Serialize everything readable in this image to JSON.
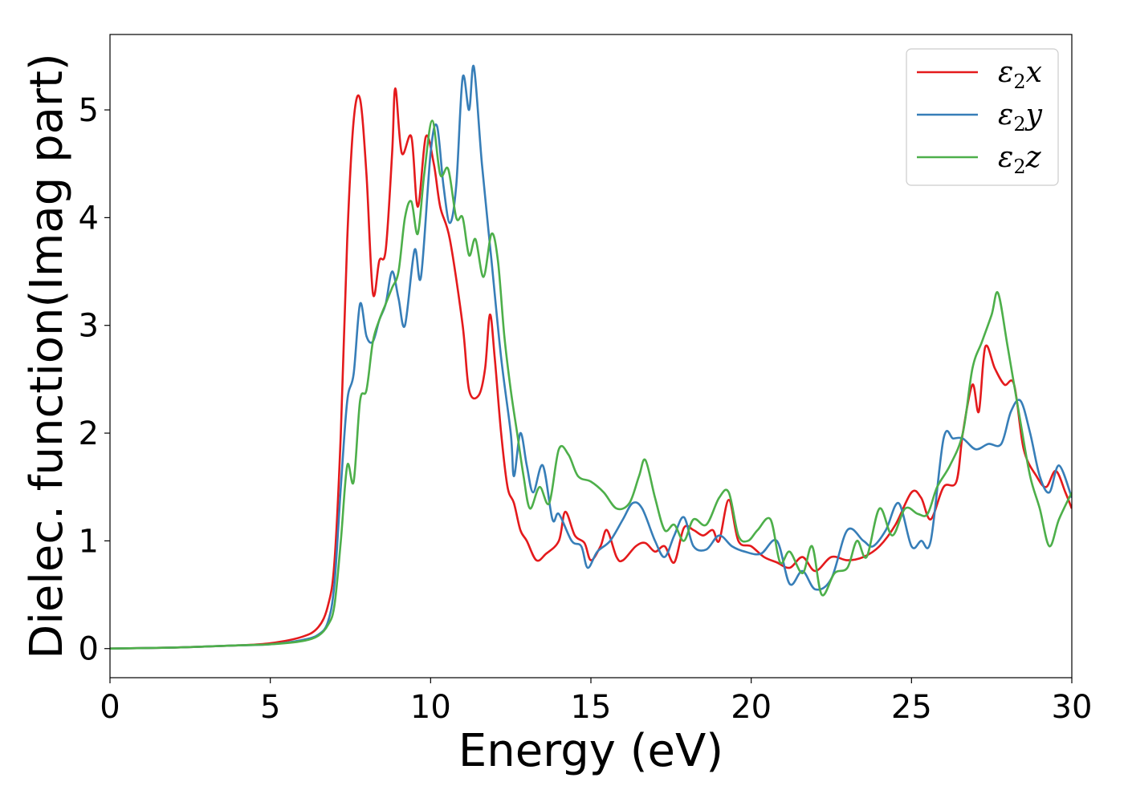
{
  "chart_data": {
    "type": "line",
    "title": "",
    "xlabel": "Energy (eV)",
    "ylabel": "Dielec. function(Imag part)",
    "xlim": [
      0,
      30
    ],
    "ylim": [
      -0.27,
      5.7
    ],
    "xticks": [
      0,
      5,
      10,
      15,
      20,
      25,
      30
    ],
    "xtick_labels": [
      "0",
      "5",
      "10",
      "15",
      "20",
      "25",
      "30"
    ],
    "yticks": [
      0,
      1,
      2,
      3,
      4,
      5
    ],
    "ytick_labels": [
      "0",
      "1",
      "2",
      "3",
      "4",
      "5"
    ],
    "grid": false,
    "legend_position": "top-right",
    "series": [
      {
        "name": "ε₂x",
        "legend_base": "ε",
        "legend_sub": "2",
        "legend_suffix": "x",
        "color": "#e41a1c",
        "points": [
          [
            0,
            0
          ],
          [
            2,
            0.01
          ],
          [
            4,
            0.03
          ],
          [
            5,
            0.05
          ],
          [
            6,
            0.11
          ],
          [
            6.5,
            0.2
          ],
          [
            6.8,
            0.4
          ],
          [
            7.0,
            0.8
          ],
          [
            7.2,
            2.0
          ],
          [
            7.4,
            3.8
          ],
          [
            7.6,
            4.9
          ],
          [
            7.8,
            5.1
          ],
          [
            8.0,
            4.4
          ],
          [
            8.2,
            3.3
          ],
          [
            8.4,
            3.6
          ],
          [
            8.6,
            3.7
          ],
          [
            8.8,
            4.6
          ],
          [
            8.9,
            5.2
          ],
          [
            9.1,
            4.6
          ],
          [
            9.4,
            4.75
          ],
          [
            9.6,
            4.1
          ],
          [
            9.85,
            4.75
          ],
          [
            10.1,
            4.5
          ],
          [
            10.3,
            4.1
          ],
          [
            10.6,
            3.8
          ],
          [
            11.0,
            3.0
          ],
          [
            11.2,
            2.4
          ],
          [
            11.5,
            2.35
          ],
          [
            11.7,
            2.6
          ],
          [
            11.85,
            3.1
          ],
          [
            12.0,
            2.7
          ],
          [
            12.2,
            2.0
          ],
          [
            12.4,
            1.5
          ],
          [
            12.6,
            1.35
          ],
          [
            12.8,
            1.1
          ],
          [
            13.0,
            1.0
          ],
          [
            13.3,
            0.82
          ],
          [
            13.6,
            0.88
          ],
          [
            14.0,
            1.0
          ],
          [
            14.2,
            1.27
          ],
          [
            14.5,
            1.05
          ],
          [
            14.8,
            0.98
          ],
          [
            15.0,
            0.82
          ],
          [
            15.3,
            0.95
          ],
          [
            15.5,
            1.1
          ],
          [
            15.8,
            0.85
          ],
          [
            16.0,
            0.82
          ],
          [
            16.4,
            0.95
          ],
          [
            16.7,
            0.98
          ],
          [
            17.0,
            0.9
          ],
          [
            17.3,
            0.95
          ],
          [
            17.6,
            0.8
          ],
          [
            17.9,
            1.12
          ],
          [
            18.2,
            1.1
          ],
          [
            18.5,
            1.05
          ],
          [
            18.8,
            1.1
          ],
          [
            19.0,
            1.0
          ],
          [
            19.3,
            1.38
          ],
          [
            19.6,
            1.0
          ],
          [
            20.0,
            0.95
          ],
          [
            20.4,
            0.85
          ],
          [
            20.8,
            0.8
          ],
          [
            21.2,
            0.75
          ],
          [
            21.6,
            0.85
          ],
          [
            22.0,
            0.72
          ],
          [
            22.5,
            0.85
          ],
          [
            23.0,
            0.82
          ],
          [
            23.5,
            0.85
          ],
          [
            24.0,
            0.95
          ],
          [
            24.5,
            1.15
          ],
          [
            25.0,
            1.45
          ],
          [
            25.3,
            1.4
          ],
          [
            25.6,
            1.2
          ],
          [
            26.0,
            1.5
          ],
          [
            26.4,
            1.55
          ],
          [
            26.6,
            2.0
          ],
          [
            26.9,
            2.45
          ],
          [
            27.1,
            2.2
          ],
          [
            27.3,
            2.8
          ],
          [
            27.6,
            2.6
          ],
          [
            27.9,
            2.45
          ],
          [
            28.2,
            2.45
          ],
          [
            28.5,
            1.85
          ],
          [
            28.9,
            1.6
          ],
          [
            29.2,
            1.5
          ],
          [
            29.5,
            1.65
          ],
          [
            29.8,
            1.45
          ],
          [
            30,
            1.3
          ]
        ]
      },
      {
        "name": "ε₂y",
        "legend_base": "ε",
        "legend_sub": "2",
        "legend_suffix": "y",
        "color": "#377eb8",
        "points": [
          [
            0,
            0
          ],
          [
            2,
            0.01
          ],
          [
            4,
            0.03
          ],
          [
            5,
            0.04
          ],
          [
            6,
            0.08
          ],
          [
            6.5,
            0.13
          ],
          [
            6.8,
            0.25
          ],
          [
            7.0,
            0.6
          ],
          [
            7.2,
            1.5
          ],
          [
            7.4,
            2.3
          ],
          [
            7.6,
            2.55
          ],
          [
            7.8,
            3.2
          ],
          [
            8.0,
            2.9
          ],
          [
            8.2,
            2.85
          ],
          [
            8.4,
            3.05
          ],
          [
            8.6,
            3.2
          ],
          [
            8.8,
            3.5
          ],
          [
            9.0,
            3.25
          ],
          [
            9.2,
            3.0
          ],
          [
            9.5,
            3.7
          ],
          [
            9.7,
            3.45
          ],
          [
            10.0,
            4.6
          ],
          [
            10.2,
            4.85
          ],
          [
            10.4,
            4.3
          ],
          [
            10.6,
            3.95
          ],
          [
            10.8,
            4.3
          ],
          [
            11.0,
            5.3
          ],
          [
            11.2,
            5.0
          ],
          [
            11.35,
            5.4
          ],
          [
            11.6,
            4.5
          ],
          [
            11.9,
            3.6
          ],
          [
            12.2,
            2.7
          ],
          [
            12.5,
            2.0
          ],
          [
            12.6,
            1.6
          ],
          [
            12.8,
            2.0
          ],
          [
            13.0,
            1.7
          ],
          [
            13.2,
            1.45
          ],
          [
            13.5,
            1.7
          ],
          [
            13.8,
            1.2
          ],
          [
            14.0,
            1.25
          ],
          [
            14.4,
            1.0
          ],
          [
            14.7,
            0.95
          ],
          [
            14.9,
            0.75
          ],
          [
            15.2,
            0.9
          ],
          [
            15.6,
            1.0
          ],
          [
            16.0,
            1.2
          ],
          [
            16.3,
            1.35
          ],
          [
            16.6,
            1.3
          ],
          [
            17.0,
            1.0
          ],
          [
            17.3,
            0.85
          ],
          [
            17.6,
            1.05
          ],
          [
            17.9,
            1.22
          ],
          [
            18.2,
            0.95
          ],
          [
            18.6,
            0.92
          ],
          [
            19.0,
            1.05
          ],
          [
            19.4,
            0.95
          ],
          [
            19.8,
            0.9
          ],
          [
            20.3,
            0.88
          ],
          [
            20.8,
            1.0
          ],
          [
            21.2,
            0.6
          ],
          [
            21.6,
            0.72
          ],
          [
            22.0,
            0.55
          ],
          [
            22.5,
            0.65
          ],
          [
            23.0,
            1.1
          ],
          [
            23.5,
            1.0
          ],
          [
            23.8,
            0.95
          ],
          [
            24.2,
            1.1
          ],
          [
            24.6,
            1.35
          ],
          [
            25.0,
            0.95
          ],
          [
            25.3,
            1.0
          ],
          [
            25.6,
            1.0
          ],
          [
            26.0,
            1.95
          ],
          [
            26.3,
            1.95
          ],
          [
            26.6,
            1.95
          ],
          [
            27.0,
            1.85
          ],
          [
            27.4,
            1.9
          ],
          [
            27.8,
            1.9
          ],
          [
            28.1,
            2.2
          ],
          [
            28.4,
            2.3
          ],
          [
            28.7,
            2.0
          ],
          [
            29.0,
            1.6
          ],
          [
            29.3,
            1.45
          ],
          [
            29.6,
            1.7
          ],
          [
            30,
            1.4
          ]
        ]
      },
      {
        "name": "ε₂z",
        "legend_base": "ε",
        "legend_sub": "2",
        "legend_suffix": "z",
        "color": "#4daf4a",
        "points": [
          [
            0,
            0
          ],
          [
            2,
            0.01
          ],
          [
            4,
            0.03
          ],
          [
            5,
            0.04
          ],
          [
            6,
            0.07
          ],
          [
            6.5,
            0.12
          ],
          [
            6.8,
            0.22
          ],
          [
            7.0,
            0.4
          ],
          [
            7.2,
            1.0
          ],
          [
            7.4,
            1.7
          ],
          [
            7.6,
            1.55
          ],
          [
            7.8,
            2.3
          ],
          [
            8.0,
            2.4
          ],
          [
            8.2,
            2.85
          ],
          [
            8.4,
            3.05
          ],
          [
            8.6,
            3.2
          ],
          [
            8.8,
            3.35
          ],
          [
            9.0,
            3.5
          ],
          [
            9.2,
            4.0
          ],
          [
            9.4,
            4.15
          ],
          [
            9.6,
            3.85
          ],
          [
            9.8,
            4.4
          ],
          [
            10.05,
            4.9
          ],
          [
            10.3,
            4.4
          ],
          [
            10.55,
            4.45
          ],
          [
            10.8,
            4.0
          ],
          [
            11.0,
            4.0
          ],
          [
            11.2,
            3.65
          ],
          [
            11.4,
            3.8
          ],
          [
            11.65,
            3.45
          ],
          [
            11.9,
            3.85
          ],
          [
            12.1,
            3.6
          ],
          [
            12.3,
            2.9
          ],
          [
            12.5,
            2.4
          ],
          [
            12.7,
            2.0
          ],
          [
            12.9,
            1.6
          ],
          [
            13.1,
            1.3
          ],
          [
            13.4,
            1.5
          ],
          [
            13.7,
            1.35
          ],
          [
            14.0,
            1.85
          ],
          [
            14.3,
            1.8
          ],
          [
            14.6,
            1.6
          ],
          [
            15.0,
            1.55
          ],
          [
            15.4,
            1.45
          ],
          [
            15.8,
            1.3
          ],
          [
            16.2,
            1.35
          ],
          [
            16.5,
            1.6
          ],
          [
            16.7,
            1.75
          ],
          [
            17.0,
            1.4
          ],
          [
            17.3,
            1.1
          ],
          [
            17.6,
            1.15
          ],
          [
            17.9,
            1.0
          ],
          [
            18.2,
            1.2
          ],
          [
            18.6,
            1.15
          ],
          [
            19.0,
            1.4
          ],
          [
            19.3,
            1.45
          ],
          [
            19.6,
            1.05
          ],
          [
            19.9,
            1.0
          ],
          [
            20.2,
            1.1
          ],
          [
            20.6,
            1.2
          ],
          [
            20.9,
            0.8
          ],
          [
            21.2,
            0.9
          ],
          [
            21.6,
            0.7
          ],
          [
            21.9,
            0.95
          ],
          [
            22.2,
            0.5
          ],
          [
            22.6,
            0.7
          ],
          [
            23.0,
            0.75
          ],
          [
            23.3,
            1.0
          ],
          [
            23.6,
            0.85
          ],
          [
            24.0,
            1.3
          ],
          [
            24.4,
            1.05
          ],
          [
            24.8,
            1.3
          ],
          [
            25.2,
            1.25
          ],
          [
            25.5,
            1.25
          ],
          [
            25.8,
            1.5
          ],
          [
            26.2,
            1.7
          ],
          [
            26.6,
            2.0
          ],
          [
            26.9,
            2.6
          ],
          [
            27.2,
            2.85
          ],
          [
            27.5,
            3.1
          ],
          [
            27.7,
            3.3
          ],
          [
            28.0,
            2.8
          ],
          [
            28.4,
            2.1
          ],
          [
            28.7,
            1.6
          ],
          [
            29.0,
            1.3
          ],
          [
            29.3,
            0.95
          ],
          [
            29.6,
            1.2
          ],
          [
            30,
            1.45
          ]
        ]
      }
    ]
  }
}
